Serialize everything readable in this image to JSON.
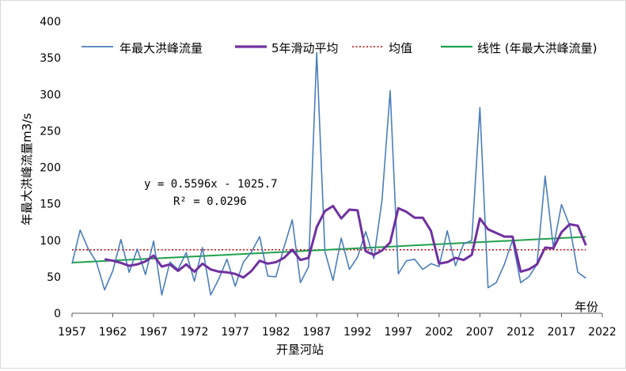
{
  "chart_data": {
    "type": "line",
    "title": "",
    "xlabel": "开垦河站",
    "ylabel": "年最大洪峰流量m3/s",
    "x_unit_label": "年份",
    "ylim": [
      0,
      400
    ],
    "y_ticks": [
      0,
      50,
      100,
      150,
      200,
      250,
      300,
      350,
      400
    ],
    "xlim": [
      1957,
      2022
    ],
    "x_ticks": [
      1957,
      1962,
      1967,
      1972,
      1977,
      1982,
      1987,
      1992,
      1997,
      2002,
      2007,
      2012,
      2017,
      2022
    ],
    "x": [
      1957,
      1958,
      1959,
      1960,
      1961,
      1962,
      1963,
      1964,
      1965,
      1966,
      1967,
      1968,
      1969,
      1970,
      1971,
      1972,
      1973,
      1974,
      1975,
      1976,
      1977,
      1978,
      1979,
      1980,
      1981,
      1982,
      1983,
      1984,
      1985,
      1986,
      1987,
      1988,
      1989,
      1990,
      1991,
      1992,
      1993,
      1994,
      1995,
      1996,
      1997,
      1998,
      1999,
      2000,
      2001,
      2002,
      2003,
      2004,
      2005,
      2006,
      2007,
      2008,
      2009,
      2010,
      2011,
      2012,
      2013,
      2014,
      2015,
      2016,
      2017,
      2018,
      2019,
      2020
    ],
    "series": [
      {
        "name": "年最大洪峰流量",
        "color": "#4a7ebb",
        "values": [
          68,
          114,
          88,
          70,
          32,
          58,
          101,
          56,
          88,
          53,
          99,
          25,
          70,
          60,
          83,
          44,
          90,
          25,
          47,
          74,
          37,
          70,
          84,
          105,
          51,
          50,
          91,
          128,
          42,
          64,
          357,
          85,
          45,
          103,
          60,
          77,
          112,
          75,
          155,
          305,
          54,
          72,
          74,
          60,
          68,
          64,
          113,
          65,
          95,
          100,
          282,
          35,
          42,
          67,
          100,
          42,
          50,
          67,
          188,
          90,
          149,
          120,
          56,
          48
        ]
      },
      {
        "name": "5年滑动平均",
        "color": "#7030a0",
        "values": [
          null,
          null,
          null,
          null,
          74,
          72,
          69,
          65,
          67,
          71,
          79,
          64,
          67,
          58,
          67,
          57,
          68,
          60,
          57,
          56,
          54,
          49,
          58,
          72,
          68,
          70,
          76,
          87,
          73,
          76,
          118,
          140,
          147,
          130,
          142,
          141,
          85,
          80,
          86,
          97,
          144,
          139,
          131,
          131,
          113,
          68,
          70,
          76,
          73,
          80,
          130,
          115,
          110,
          105,
          105,
          57,
          60,
          67,
          90,
          89,
          111,
          122,
          120,
          93
        ]
      }
    ],
    "mean": {
      "name": "均值",
      "value": 87,
      "color": "#c00000"
    },
    "trend": {
      "name": "线性 (年最大洪峰流量)",
      "slope": 0.5596,
      "intercept": -1025.7,
      "color": "#1fa14a"
    },
    "equation_text": "y = 0.5596x - 1025.7",
    "r2_text": "R² = 0.0296",
    "legend": [
      "年最大洪峰流量",
      "5年滑动平均",
      "均值",
      "线性 (年最大洪峰流量)"
    ],
    "legend_position": "top",
    "grid": false
  }
}
